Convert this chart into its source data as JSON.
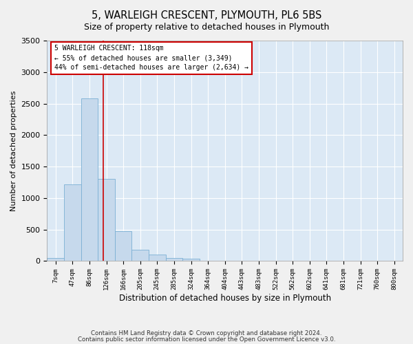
{
  "title": "5, WARLEIGH CRESCENT, PLYMOUTH, PL6 5BS",
  "subtitle": "Size of property relative to detached houses in Plymouth",
  "xlabel": "Distribution of detached houses by size in Plymouth",
  "ylabel": "Number of detached properties",
  "bar_color": "#c6d9ec",
  "bar_edge_color": "#7bafd4",
  "background_color": "#dce9f5",
  "grid_color": "#ffffff",
  "fig_background": "#f0f0f0",
  "categories": [
    "7sqm",
    "47sqm",
    "86sqm",
    "126sqm",
    "166sqm",
    "205sqm",
    "245sqm",
    "285sqm",
    "324sqm",
    "364sqm",
    "404sqm",
    "443sqm",
    "483sqm",
    "522sqm",
    "562sqm",
    "602sqm",
    "641sqm",
    "681sqm",
    "721sqm",
    "760sqm",
    "800sqm"
  ],
  "values": [
    50,
    1220,
    2580,
    1310,
    480,
    185,
    100,
    50,
    35,
    5,
    2,
    1,
    1,
    0,
    0,
    0,
    0,
    0,
    0,
    0,
    0
  ],
  "property_label": "5 WARLEIGH CRESCENT: 118sqm",
  "annotation_line1": "← 55% of detached houses are smaller (3,349)",
  "annotation_line2": "44% of semi-detached houses are larger (2,634) →",
  "annotation_box_color": "#ffffff",
  "annotation_box_edge": "#cc0000",
  "vline_color": "#cc0000",
  "vline_x": 2.8,
  "ylim": [
    0,
    3500
  ],
  "yticks": [
    0,
    500,
    1000,
    1500,
    2000,
    2500,
    3000,
    3500
  ],
  "footnote1": "Contains HM Land Registry data © Crown copyright and database right 2024.",
  "footnote2": "Contains public sector information licensed under the Open Government Licence v3.0."
}
